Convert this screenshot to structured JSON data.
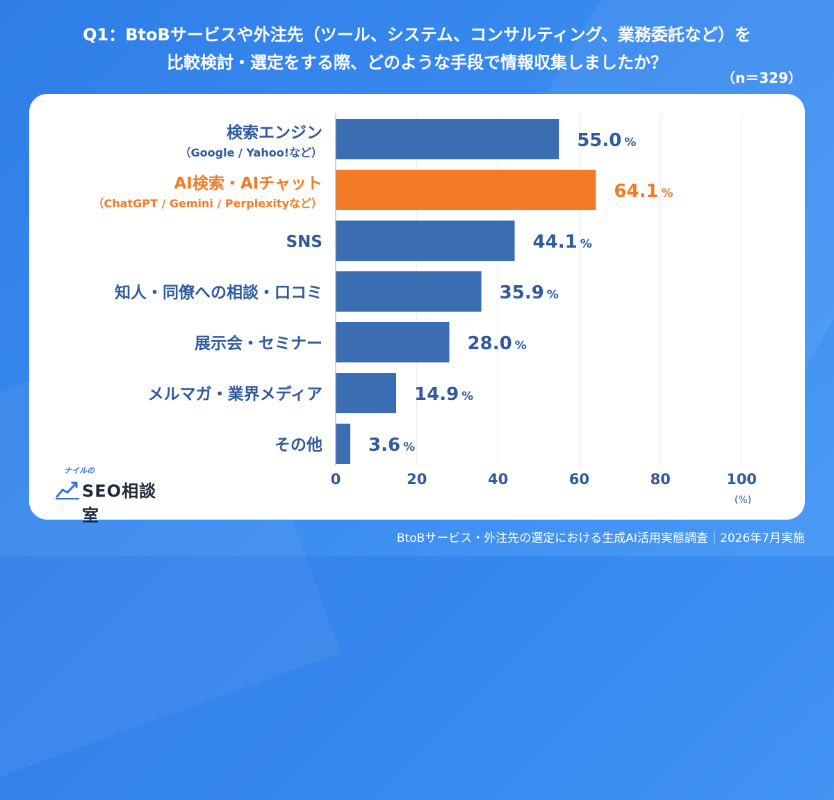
{
  "question": {
    "line1": "Q1：BtoBサービスや外注先（ツール、システム、コンサルティング、業務委託など）を",
    "line2": "比較検討・選定をする際、どのような手段で情報収集しましたか？",
    "sample_size": "（n＝329）"
  },
  "chart_data": {
    "type": "bar",
    "orientation": "horizontal",
    "categories": [
      {
        "label": "検索エンジン",
        "sublabel": "（Google / Yahoo!など）"
      },
      {
        "label": "AI検索・AIチャット",
        "sublabel": "（ChatGPT / Gemini / Perplexityなど）"
      },
      {
        "label": "SNS",
        "sublabel": ""
      },
      {
        "label": "知人・同僚への相談・口コミ",
        "sublabel": ""
      },
      {
        "label": "展示会・セミナー",
        "sublabel": ""
      },
      {
        "label": "メルマガ・業界メディア",
        "sublabel": ""
      },
      {
        "label": "その他",
        "sublabel": ""
      }
    ],
    "values": [
      55.0,
      64.1,
      44.1,
      35.9,
      28.0,
      14.9,
      3.6
    ],
    "value_labels": [
      "55.0",
      "64.1",
      "44.1",
      "35.9",
      "28.0",
      "14.9",
      "3.6"
    ],
    "value_unit": "%",
    "highlight_index": 1,
    "xlim": [
      0,
      100
    ],
    "xticks": [
      0,
      20,
      40,
      60,
      80,
      100
    ],
    "xticks_labels": [
      "0",
      "20",
      "40",
      "60",
      "80",
      "100"
    ],
    "x_unit_label": "(%)",
    "grid": true,
    "colors": {
      "bar": "#3b6db3",
      "highlight": "#f47a25",
      "label": "#2f5a9e",
      "grid": "#e6e9ef"
    }
  },
  "logo": {
    "small_text": "ナイルの",
    "main_text": "SEO相談室"
  },
  "footer": "BtoBサービス・外注先の選定における生成AI活用実態調査｜2026年7月実施"
}
